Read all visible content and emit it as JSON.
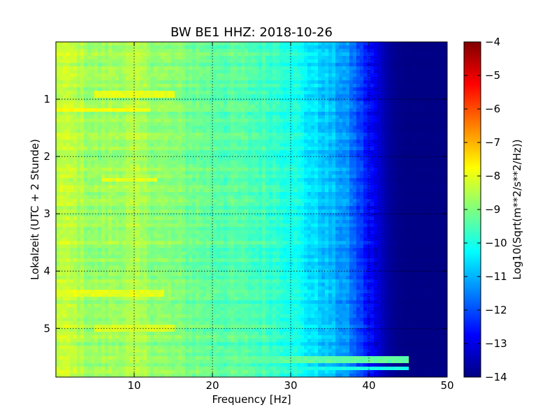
{
  "chart_data": {
    "type": "heatmap",
    "title": "BW BE1 HHZ: 2018-10-26",
    "xlabel": "Frequency [Hz]",
    "ylabel": "Lokalzeit (UTC + 2 Stunde)",
    "colorbar_label": "Log10(Sqrt(m**2/s**2/Hz))",
    "colormap": "jet",
    "xlim": [
      0,
      50
    ],
    "ylim": [
      5.85,
      0
    ],
    "x_ticks": [
      10,
      20,
      30,
      40,
      50
    ],
    "x_tick_labels": [
      "10",
      "20",
      "30",
      "40",
      "50"
    ],
    "y_ticks": [
      1,
      2,
      3,
      4,
      5
    ],
    "y_tick_labels": [
      "1",
      "2",
      "3",
      "4",
      "5"
    ],
    "colorbar_range": [
      -14,
      -4
    ],
    "colorbar_ticks": [
      -4,
      -5,
      -6,
      -7,
      -8,
      -9,
      -10,
      -11,
      -12,
      -13,
      -14
    ],
    "colorbar_tick_labels": [
      "−4",
      "−5",
      "−6",
      "−7",
      "−8",
      "−9",
      "−10",
      "−11",
      "−12",
      "−13",
      "−14"
    ],
    "grid": true,
    "grid_style": "dotted",
    "frequency_profile_hz": [
      0,
      2,
      5,
      10,
      15,
      20,
      25,
      28,
      30,
      32,
      35,
      37,
      39,
      41,
      42,
      43,
      44,
      45,
      50
    ],
    "frequency_profile_log10": [
      -8.3,
      -8.4,
      -8.8,
      -8.6,
      -9.0,
      -9.3,
      -9.5,
      -9.7,
      -9.9,
      -10.4,
      -10.9,
      -11.3,
      -12.2,
      -13.1,
      -13.5,
      -13.8,
      -13.9,
      -13.95,
      -13.95
    ],
    "bright_bands": [
      {
        "time_h": 0.9,
        "from_hz": 5,
        "to_hz": 15,
        "log10": -8.0
      },
      {
        "time_h": 1.2,
        "from_hz": 0,
        "to_hz": 12,
        "log10": -7.8
      },
      {
        "time_h": 2.4,
        "from_hz": 6,
        "to_hz": 13,
        "log10": -8.0
      },
      {
        "time_h": 4.4,
        "from_hz": 0,
        "to_hz": 14,
        "log10": -8.0
      },
      {
        "time_h": 5.0,
        "from_hz": 5,
        "to_hz": 15,
        "log10": -8.1
      },
      {
        "time_h": 5.55,
        "from_hz": 15,
        "to_hz": 45,
        "log10": -9.3
      },
      {
        "time_h": 5.7,
        "from_hz": 30,
        "to_hz": 45,
        "log10": -10.0
      }
    ]
  }
}
